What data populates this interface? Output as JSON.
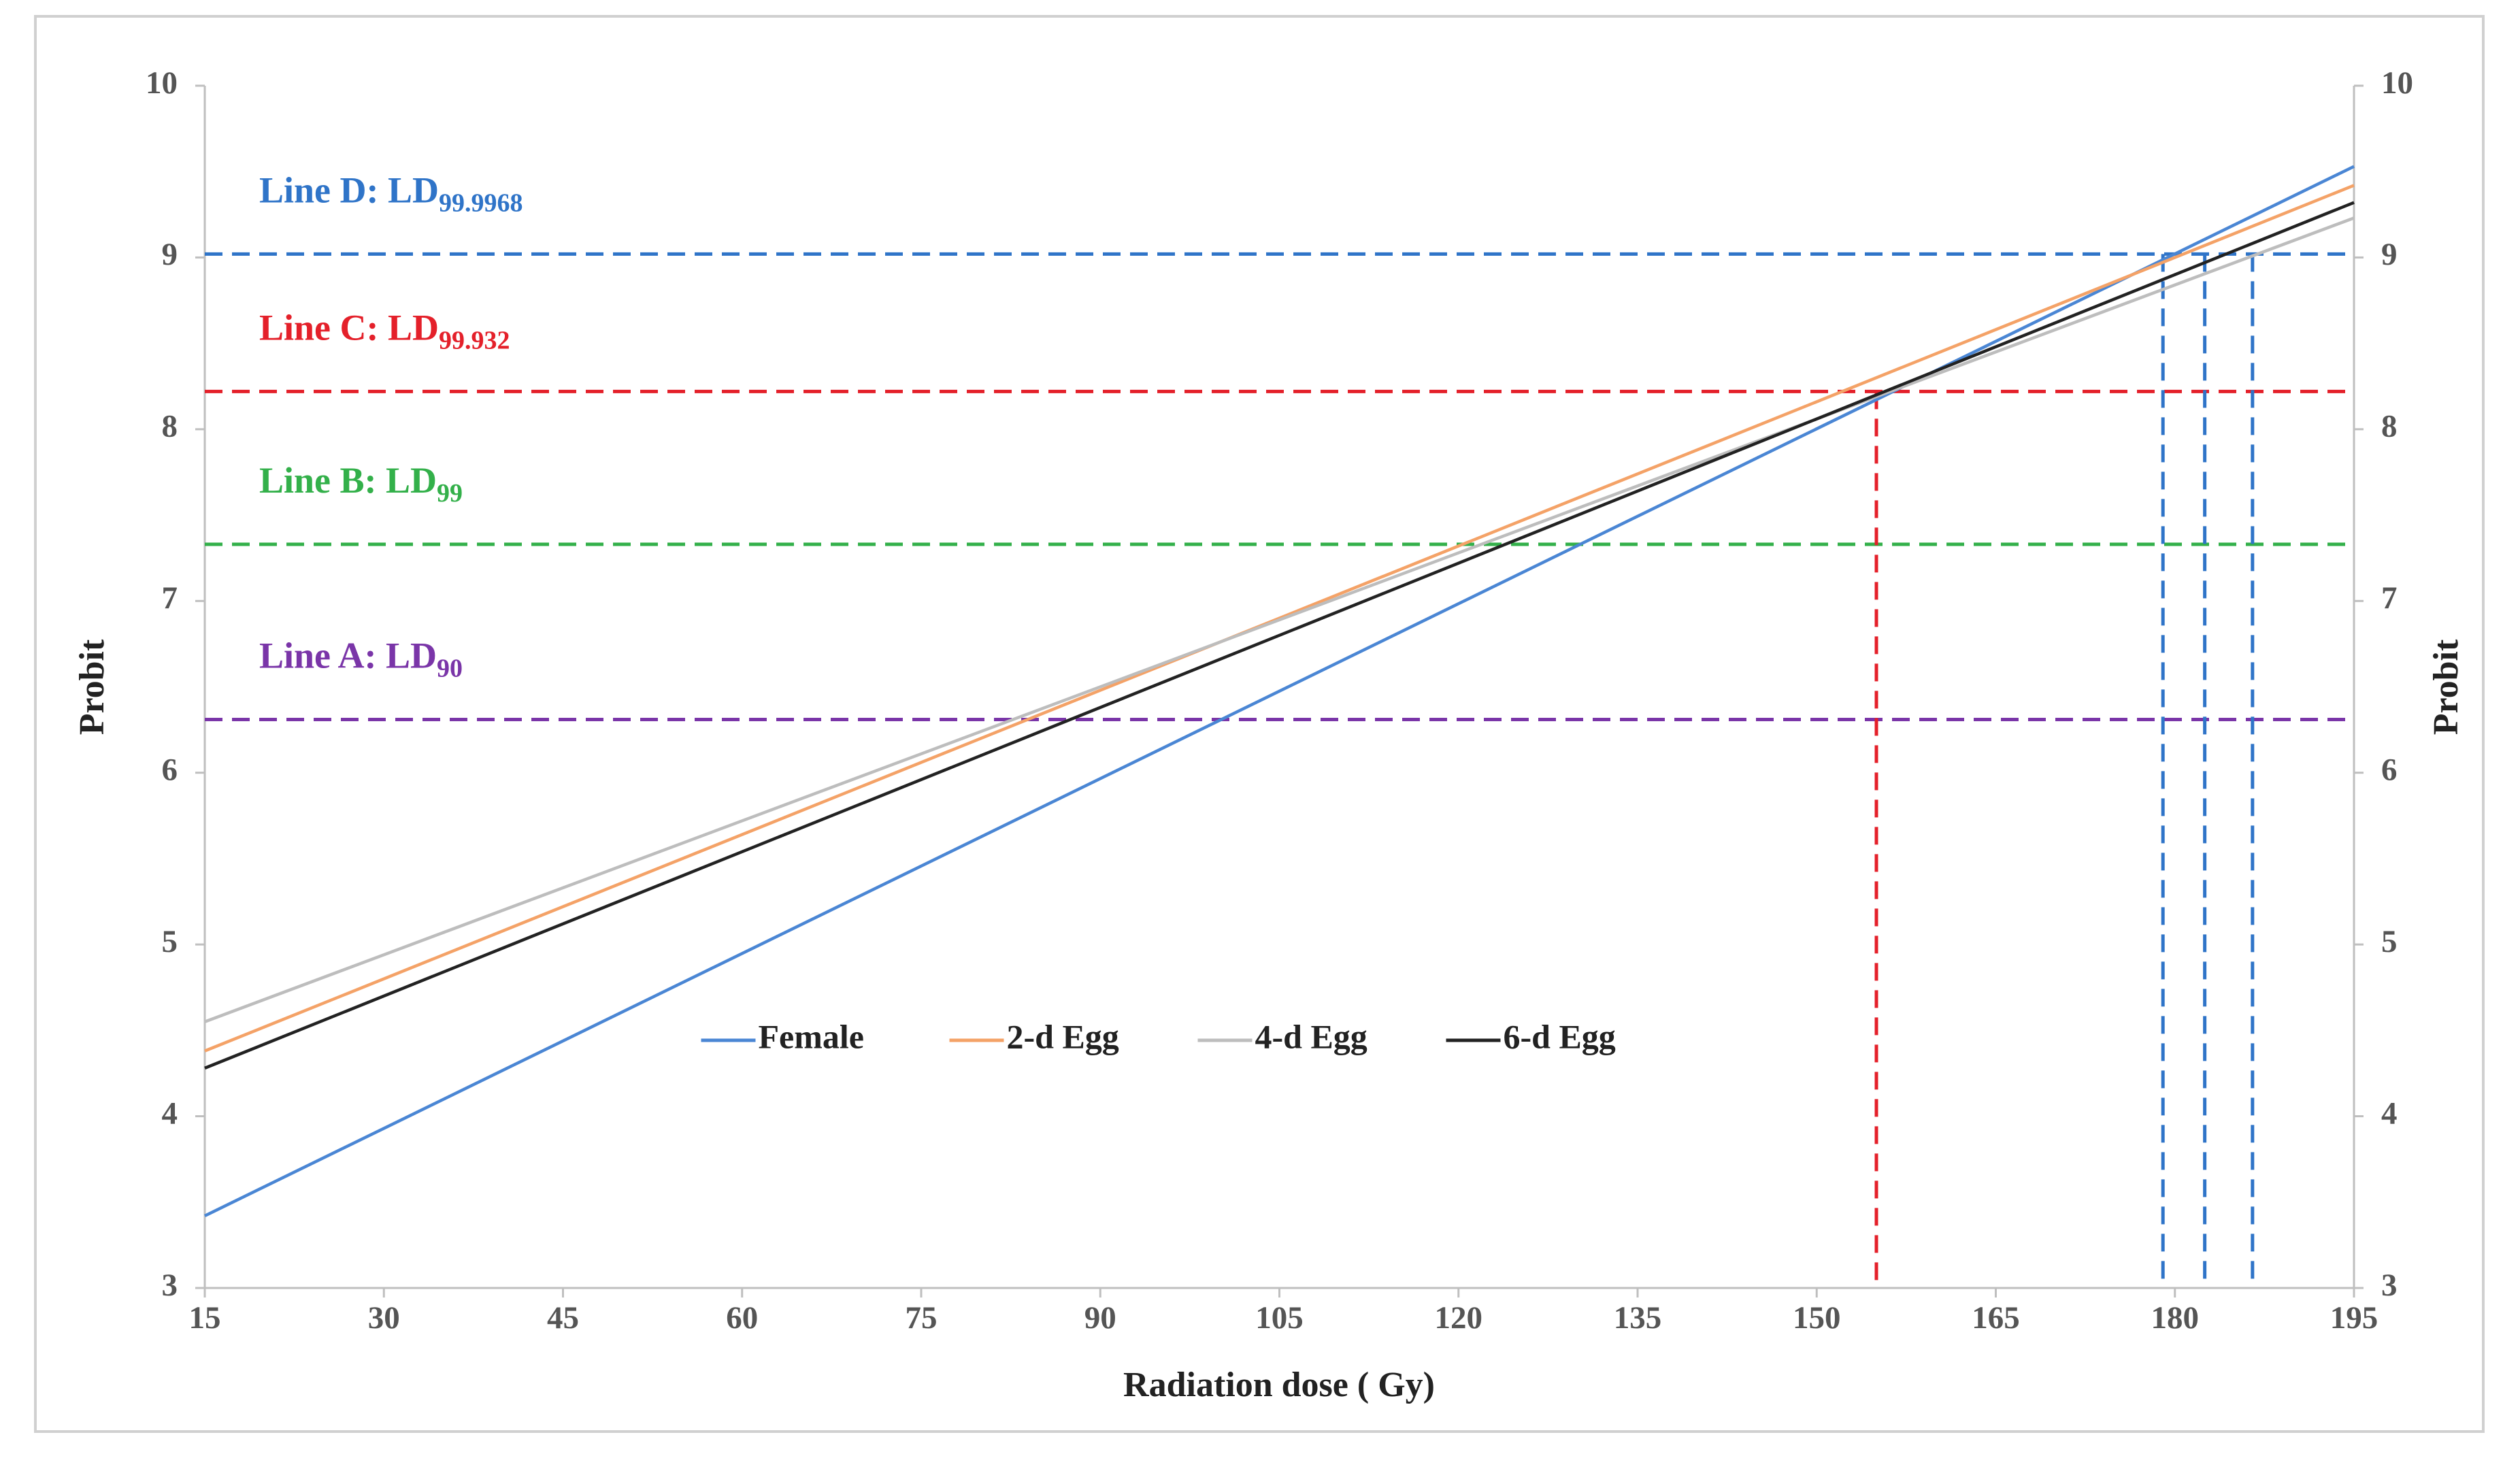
{
  "chart_data": {
    "type": "line",
    "x_label": "Radiation dose ( Gy)",
    "y_label": "Probit",
    "y2_label": "Probit",
    "x": [
      15,
      195
    ],
    "series": [
      {
        "name": "Female",
        "color": "#4a86d4",
        "values": [
          3.42,
          9.53
        ]
      },
      {
        "name": "2-d Egg",
        "color": "#f4a267",
        "values": [
          4.38,
          9.42
        ]
      },
      {
        "name": "4-d Egg",
        "color": "#bdbdbd",
        "values": [
          4.55,
          9.23
        ]
      },
      {
        "name": "6-d Egg",
        "color": "#222222",
        "values": [
          4.28,
          9.32
        ]
      }
    ],
    "ref_lines": [
      {
        "label": "Line A: LD",
        "sub": "90",
        "y": 6.31,
        "color": "#7a35a8"
      },
      {
        "label": "Line B: LD",
        "sub": "99",
        "y": 7.33,
        "color": "#33b04a"
      },
      {
        "label": "Line C: LD",
        "sub": "99.932",
        "y": 8.22,
        "color": "#e4202a"
      },
      {
        "label": "Line D: LD",
        "sub": "99.9968",
        "y": 9.02,
        "color": "#2f74c8"
      }
    ],
    "drop_lines": [
      {
        "x": 155,
        "y": 8.22,
        "color": "#e4202a"
      },
      {
        "x": 179,
        "y": 9.02,
        "color": "#2f74c8"
      },
      {
        "x": 182.5,
        "y": 9.02,
        "color": "#2f74c8"
      },
      {
        "x": 186.5,
        "y": 9.02,
        "color": "#2f74c8"
      }
    ],
    "xlim": [
      15,
      195
    ],
    "xticks": [
      15,
      30,
      45,
      60,
      75,
      90,
      105,
      120,
      135,
      150,
      165,
      180,
      195
    ],
    "ylim": [
      3,
      10
    ],
    "yticks": [
      3,
      4,
      5,
      6,
      7,
      8,
      9,
      10
    ],
    "y2lim": [
      3,
      10
    ],
    "y2ticks": [
      3,
      4,
      5,
      6,
      7,
      8,
      9,
      10
    ],
    "legend": "lower center"
  }
}
